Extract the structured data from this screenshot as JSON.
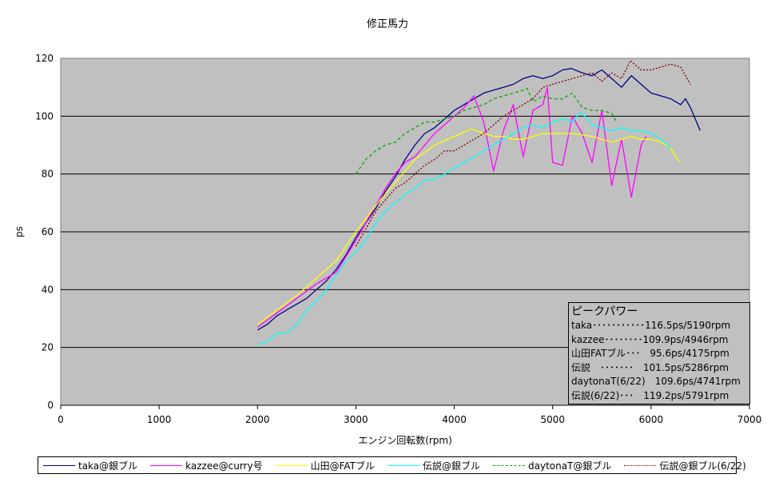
{
  "chart_data": {
    "type": "line",
    "title": "修正馬力",
    "xlabel": "エンジン回転数(rpm)",
    "ylabel": "ps",
    "xlim": [
      0,
      7000
    ],
    "ylim": [
      0,
      120
    ],
    "xticks": [
      "0",
      "1000",
      "2000",
      "3000",
      "4000",
      "5000",
      "6000",
      "7000"
    ],
    "yticks": [
      "0",
      "20",
      "40",
      "60",
      "80",
      "100",
      "120"
    ],
    "plot_background": "#c0c0c0",
    "gridlines": "horizontal",
    "legend_position": "bottom",
    "series": [
      {
        "name": "taka@銀ブル",
        "color": "#000080",
        "dash": "solid",
        "points": [
          [
            2000,
            26
          ],
          [
            2100,
            28
          ],
          [
            2200,
            31
          ],
          [
            2300,
            33
          ],
          [
            2400,
            35
          ],
          [
            2500,
            37
          ],
          [
            2600,
            40
          ],
          [
            2700,
            43
          ],
          [
            2800,
            47
          ],
          [
            2900,
            52
          ],
          [
            3000,
            58
          ],
          [
            3100,
            63
          ],
          [
            3200,
            68
          ],
          [
            3300,
            74
          ],
          [
            3400,
            79
          ],
          [
            3500,
            85
          ],
          [
            3600,
            90
          ],
          [
            3700,
            94
          ],
          [
            3800,
            96
          ],
          [
            3900,
            99
          ],
          [
            4000,
            102
          ],
          [
            4100,
            104
          ],
          [
            4200,
            106
          ],
          [
            4300,
            108
          ],
          [
            4400,
            109
          ],
          [
            4500,
            110
          ],
          [
            4600,
            111
          ],
          [
            4700,
            113
          ],
          [
            4800,
            114
          ],
          [
            4900,
            113
          ],
          [
            5000,
            114
          ],
          [
            5100,
            116
          ],
          [
            5190,
            116.5
          ],
          [
            5300,
            115
          ],
          [
            5400,
            114
          ],
          [
            5500,
            116
          ],
          [
            5600,
            113
          ],
          [
            5700,
            110
          ],
          [
            5800,
            114
          ],
          [
            5900,
            111
          ],
          [
            6000,
            108
          ],
          [
            6100,
            107
          ],
          [
            6200,
            106
          ],
          [
            6300,
            104
          ],
          [
            6350,
            106
          ],
          [
            6400,
            103
          ],
          [
            6500,
            95
          ]
        ]
      },
      {
        "name": "kazzee@curry号",
        "color": "#ff00ff",
        "dash": "solid",
        "points": [
          [
            2000,
            27
          ],
          [
            2200,
            32
          ],
          [
            2400,
            37
          ],
          [
            2600,
            42
          ],
          [
            2800,
            46
          ],
          [
            3000,
            57
          ],
          [
            3100,
            63
          ],
          [
            3200,
            69
          ],
          [
            3300,
            75
          ],
          [
            3400,
            80
          ],
          [
            3500,
            84
          ],
          [
            3600,
            86
          ],
          [
            3700,
            90
          ],
          [
            3800,
            94
          ],
          [
            3900,
            97
          ],
          [
            4000,
            100
          ],
          [
            4100,
            103
          ],
          [
            4200,
            107
          ],
          [
            4300,
            98
          ],
          [
            4400,
            81
          ],
          [
            4500,
            95
          ],
          [
            4600,
            104
          ],
          [
            4700,
            86
          ],
          [
            4800,
            102
          ],
          [
            4900,
            104
          ],
          [
            4946,
            109.9
          ],
          [
            5000,
            84
          ],
          [
            5100,
            83
          ],
          [
            5200,
            100
          ],
          [
            5300,
            94
          ],
          [
            5400,
            84
          ],
          [
            5500,
            102
          ],
          [
            5600,
            76
          ],
          [
            5700,
            92
          ],
          [
            5800,
            72
          ],
          [
            5900,
            90
          ],
          [
            5950,
            93
          ]
        ]
      },
      {
        "name": "山田@FATブル",
        "color": "#ffff00",
        "dash": "solid",
        "points": [
          [
            2000,
            28
          ],
          [
            2200,
            33
          ],
          [
            2400,
            38
          ],
          [
            2600,
            44
          ],
          [
            2800,
            50
          ],
          [
            3000,
            60
          ],
          [
            3200,
            69
          ],
          [
            3400,
            77
          ],
          [
            3600,
            85
          ],
          [
            3800,
            90
          ],
          [
            4000,
            93
          ],
          [
            4175,
            95.6
          ],
          [
            4300,
            94
          ],
          [
            4400,
            93
          ],
          [
            4500,
            93
          ],
          [
            4600,
            92
          ],
          [
            4700,
            92
          ],
          [
            4800,
            93
          ],
          [
            4900,
            94
          ],
          [
            5000,
            94
          ],
          [
            5200,
            94
          ],
          [
            5400,
            93
          ],
          [
            5600,
            91
          ],
          [
            5700,
            92
          ],
          [
            5800,
            93
          ],
          [
            5900,
            92
          ],
          [
            6000,
            92
          ],
          [
            6100,
            91
          ],
          [
            6200,
            89
          ],
          [
            6250,
            86
          ],
          [
            6300,
            84
          ]
        ]
      },
      {
        "name": "伝説@銀ブル",
        "color": "#00ffff",
        "dash": "solid",
        "points": [
          [
            2000,
            21
          ],
          [
            2100,
            22
          ],
          [
            2200,
            25
          ],
          [
            2300,
            25
          ],
          [
            2400,
            28
          ],
          [
            2500,
            33
          ],
          [
            2600,
            36
          ],
          [
            2700,
            40
          ],
          [
            2800,
            45
          ],
          [
            2900,
            50
          ],
          [
            3000,
            53
          ],
          [
            3100,
            57
          ],
          [
            3200,
            63
          ],
          [
            3300,
            67
          ],
          [
            3400,
            70
          ],
          [
            3500,
            73
          ],
          [
            3600,
            75
          ],
          [
            3700,
            78
          ],
          [
            3800,
            78
          ],
          [
            3900,
            80
          ],
          [
            4000,
            82
          ],
          [
            4100,
            84
          ],
          [
            4200,
            86
          ],
          [
            4300,
            88
          ],
          [
            4400,
            90
          ],
          [
            4500,
            92
          ],
          [
            4600,
            94
          ],
          [
            4700,
            96
          ],
          [
            4800,
            97
          ],
          [
            4900,
            96
          ],
          [
            5000,
            98
          ],
          [
            5100,
            99
          ],
          [
            5200,
            98
          ],
          [
            5286,
            101.5
          ],
          [
            5400,
            97
          ],
          [
            5500,
            96
          ],
          [
            5600,
            95
          ],
          [
            5700,
            96
          ],
          [
            5800,
            95
          ],
          [
            5900,
            95
          ],
          [
            6000,
            94
          ],
          [
            6100,
            92
          ],
          [
            6200,
            89
          ]
        ]
      },
      {
        "name": "daytonaT@銀ブル",
        "color": "#00aa00",
        "dash": "dashed",
        "points": [
          [
            3000,
            80
          ],
          [
            3100,
            85
          ],
          [
            3200,
            88
          ],
          [
            3300,
            90
          ],
          [
            3400,
            91
          ],
          [
            3500,
            94
          ],
          [
            3600,
            96
          ],
          [
            3700,
            98
          ],
          [
            3800,
            98
          ],
          [
            3900,
            99
          ],
          [
            4000,
            100
          ],
          [
            4100,
            102
          ],
          [
            4200,
            103
          ],
          [
            4300,
            104
          ],
          [
            4400,
            106
          ],
          [
            4500,
            107
          ],
          [
            4600,
            108
          ],
          [
            4700,
            109
          ],
          [
            4741,
            109.6
          ],
          [
            4800,
            105
          ],
          [
            4900,
            107
          ],
          [
            5000,
            106
          ],
          [
            5100,
            106
          ],
          [
            5200,
            108
          ],
          [
            5300,
            103
          ],
          [
            5400,
            102
          ],
          [
            5500,
            102
          ],
          [
            5600,
            101
          ],
          [
            5650,
            98
          ]
        ]
      },
      {
        "name": "伝説@銀ブル(6/22)",
        "color": "#800000",
        "dash": "dotted",
        "points": [
          [
            3000,
            55
          ],
          [
            3100,
            61
          ],
          [
            3200,
            67
          ],
          [
            3300,
            71
          ],
          [
            3400,
            75
          ],
          [
            3500,
            77
          ],
          [
            3600,
            80
          ],
          [
            3700,
            83
          ],
          [
            3800,
            85
          ],
          [
            3900,
            88
          ],
          [
            4000,
            88
          ],
          [
            4100,
            90
          ],
          [
            4200,
            92
          ],
          [
            4300,
            94
          ],
          [
            4400,
            97
          ],
          [
            4500,
            100
          ],
          [
            4600,
            102
          ],
          [
            4700,
            104
          ],
          [
            4800,
            106
          ],
          [
            4900,
            110
          ],
          [
            5000,
            111
          ],
          [
            5100,
            112
          ],
          [
            5200,
            113
          ],
          [
            5300,
            114
          ],
          [
            5400,
            115
          ],
          [
            5500,
            112
          ],
          [
            5600,
            115
          ],
          [
            5700,
            113
          ],
          [
            5791,
            119.2
          ],
          [
            5900,
            116
          ],
          [
            6000,
            116
          ],
          [
            6100,
            117
          ],
          [
            6200,
            118
          ],
          [
            6300,
            117
          ],
          [
            6400,
            111
          ]
        ]
      }
    ]
  },
  "peak_box": {
    "title": "ピークパワー",
    "lines": [
      "taka･･･････････116.5ps/5190rpm",
      "kazzee････････109.9ps/4946rpm",
      "山田FATブル･･･　95.6ps/4175rpm",
      "伝説　･･･････　101.5ps/5286rpm",
      "daytonaT(6/22)　109.6ps/4741rpm",
      "伝説(6/22)･･･　119.2ps/5791rpm"
    ]
  },
  "legend": [
    {
      "label": "taka@銀ブル",
      "color": "#000080",
      "dash": "solid"
    },
    {
      "label": "kazzee@curry号",
      "color": "#ff00ff",
      "dash": "solid"
    },
    {
      "label": "山田@FATブル",
      "color": "#ffff00",
      "dash": "solid"
    },
    {
      "label": "伝説@銀ブル",
      "color": "#00ffff",
      "dash": "solid"
    },
    {
      "label": "daytonaT@銀ブル",
      "color": "#00aa00",
      "dash": "dashed"
    },
    {
      "label": "伝説@銀ブル(6/22)",
      "color": "#800000",
      "dash": "dotted"
    }
  ]
}
